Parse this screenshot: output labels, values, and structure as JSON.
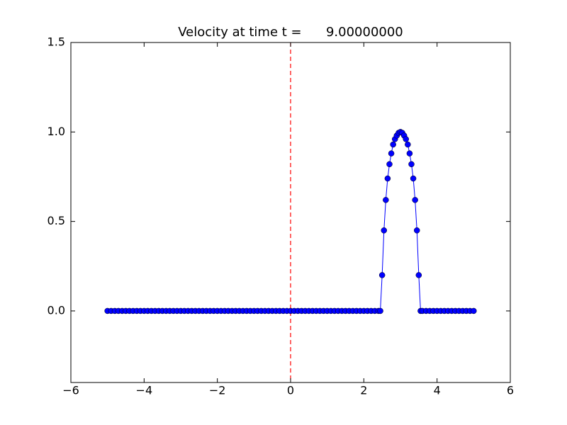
{
  "chart_data": {
    "type": "line",
    "title": "Velocity at time t =      9.00000000",
    "x": [
      -5,
      -4.9,
      -4.8,
      -4.7,
      -4.6,
      -4.5,
      -4.4,
      -4.3,
      -4.2,
      -4.1,
      -4,
      -3.9,
      -3.8,
      -3.7,
      -3.6,
      -3.5,
      -3.4,
      -3.3,
      -3.2,
      -3.1,
      -3,
      -2.9,
      -2.8,
      -2.7,
      -2.6,
      -2.5,
      -2.4,
      -2.3,
      -2.2,
      -2.1,
      -2,
      -1.9,
      -1.8,
      -1.7,
      -1.6,
      -1.5,
      -1.4,
      -1.3,
      -1.2,
      -1.1,
      -1,
      -0.9,
      -0.8,
      -0.7,
      -0.6,
      -0.5,
      -0.4,
      -0.3,
      -0.2,
      -0.1,
      0,
      0.1,
      0.2,
      0.3,
      0.4,
      0.5,
      0.6,
      0.7,
      0.8,
      0.9,
      1,
      1.1,
      1.2,
      1.3,
      1.4,
      1.5,
      1.6,
      1.7,
      1.8,
      1.9,
      2,
      2.1,
      2.2,
      2.3,
      2.4,
      2.45,
      2.5,
      2.55,
      2.6,
      2.65,
      2.7,
      2.75,
      2.8,
      2.85,
      2.9,
      2.95,
      3,
      3.05,
      3.1,
      3.15,
      3.2,
      3.25,
      3.3,
      3.35,
      3.4,
      3.45,
      3.5,
      3.55,
      3.6,
      3.7,
      3.8,
      3.9,
      4,
      4.1,
      4.2,
      4.3,
      4.4,
      4.5,
      4.6,
      4.7,
      4.8,
      4.9,
      5
    ],
    "series": [
      {
        "color": "#0000ff",
        "values": [
          0,
          0,
          0,
          0,
          0,
          0,
          0,
          0,
          0,
          0,
          0,
          0,
          0,
          0,
          0,
          0,
          0,
          0,
          0,
          0,
          0,
          0,
          0,
          0,
          0,
          0,
          0,
          0,
          0,
          0,
          0,
          0,
          0,
          0,
          0,
          0,
          0,
          0,
          0,
          0,
          0,
          0,
          0,
          0,
          0,
          0,
          0,
          0,
          0,
          0,
          0,
          0,
          0,
          0,
          0,
          0,
          0,
          0,
          0,
          0,
          0,
          0,
          0,
          0,
          0,
          0,
          0,
          0,
          0,
          0,
          0,
          0,
          0,
          0,
          0,
          0,
          0.2,
          0.45,
          0.62,
          0.74,
          0.82,
          0.88,
          0.93,
          0.96,
          0.98,
          0.995,
          1,
          0.995,
          0.98,
          0.96,
          0.93,
          0.88,
          0.82,
          0.74,
          0.62,
          0.45,
          0.2,
          0,
          0,
          0,
          0,
          0,
          0,
          0,
          0,
          0,
          0,
          0,
          0,
          0,
          0,
          0,
          0
        ]
      }
    ],
    "vline": {
      "x": 0,
      "color": "#ff0000"
    },
    "xlim": [
      -6,
      6
    ],
    "xticks": [
      {
        "value": -6,
        "label": "−6"
      },
      {
        "value": -4,
        "label": "−4"
      },
      {
        "value": -2,
        "label": "−2"
      },
      0,
      2,
      4,
      6
    ],
    "ylim": [
      -0.4,
      1.5
    ],
    "yticks": [
      {
        "value": 0,
        "label": "0.0"
      },
      {
        "value": 0.5,
        "label": "0.5"
      },
      {
        "value": 1,
        "label": "1.0"
      },
      {
        "value": 1.5,
        "label": "1.5"
      }
    ],
    "grid": false
  }
}
